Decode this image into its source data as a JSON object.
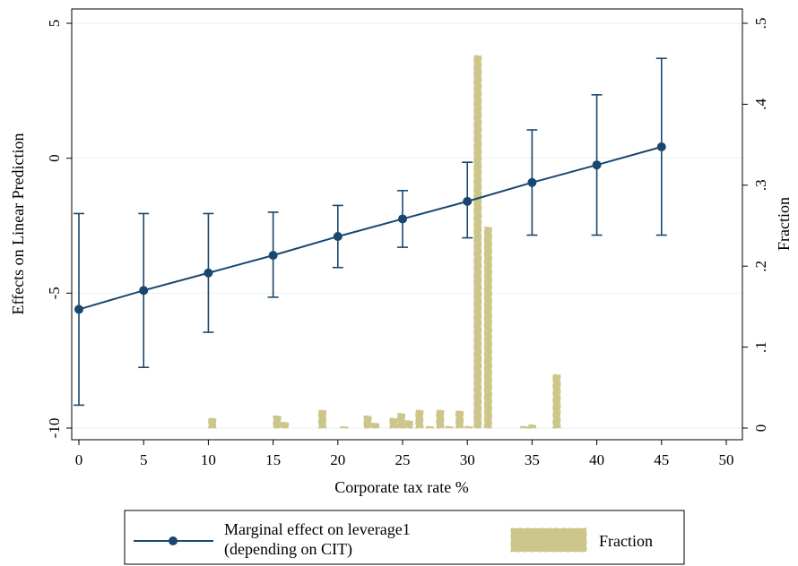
{
  "chart_data": {
    "type": "line",
    "xlabel": "Corporate tax rate %",
    "ylabel": "Effects on Linear Prediction",
    "y2label": "Fraction",
    "xlim": [
      0,
      50
    ],
    "ylim": [
      -10,
      5
    ],
    "y2lim": [
      0,
      0.5
    ],
    "x_ticks": [
      "0",
      "5",
      "10",
      "15",
      "20",
      "25",
      "30",
      "35",
      "40",
      "45",
      "50"
    ],
    "y_ticks": [
      "-10",
      "-5",
      "0",
      "5"
    ],
    "y2_ticks": [
      "0",
      ".1",
      ".2",
      ".3",
      ".4",
      ".5"
    ],
    "grid": true,
    "legend_position": "bottom",
    "series": [
      {
        "name": "Marginal effect on leverage1\n(depending on CIT)",
        "legend_lines": [
          "Marginal effect on leverage1",
          "(depending on CIT)"
        ],
        "color": "#1a476f",
        "x": [
          0,
          5,
          10,
          15,
          20,
          25,
          30,
          35,
          40,
          45
        ],
        "y": [
          -5.6,
          -4.9,
          -4.25,
          -3.6,
          -2.9,
          -2.25,
          -1.6,
          -0.9,
          -0.25,
          0.42
        ],
        "ci_low": [
          -9.15,
          -7.75,
          -6.45,
          -5.15,
          -4.05,
          -3.3,
          -2.95,
          -2.85,
          -2.85,
          -2.85
        ],
        "ci_high": [
          -2.05,
          -2.05,
          -2.05,
          -2.0,
          -1.75,
          -1.2,
          -0.15,
          1.05,
          2.35,
          3.7
        ]
      },
      {
        "name": "Fraction",
        "legend_lines": [
          "Fraction"
        ],
        "type": "bar",
        "axis": "right",
        "color": "#cdc68a",
        "bins": [
          {
            "x": 10.3,
            "value": 0.012
          },
          {
            "x": 15.3,
            "value": 0.015
          },
          {
            "x": 15.9,
            "value": 0.007
          },
          {
            "x": 18.8,
            "value": 0.022
          },
          {
            "x": 20.5,
            "value": 0.001
          },
          {
            "x": 22.3,
            "value": 0.015
          },
          {
            "x": 22.9,
            "value": 0.006
          },
          {
            "x": 24.3,
            "value": 0.012
          },
          {
            "x": 24.9,
            "value": 0.018
          },
          {
            "x": 25.5,
            "value": 0.009
          },
          {
            "x": 26.3,
            "value": 0.022
          },
          {
            "x": 27.1,
            "value": 0.002
          },
          {
            "x": 27.9,
            "value": 0.022
          },
          {
            "x": 28.6,
            "value": 0.002
          },
          {
            "x": 29.4,
            "value": 0.021
          },
          {
            "x": 30.1,
            "value": 0.002
          },
          {
            "x": 30.8,
            "value": 0.46
          },
          {
            "x": 31.6,
            "value": 0.248
          },
          {
            "x": 34.4,
            "value": 0.002
          },
          {
            "x": 35.0,
            "value": 0.004
          },
          {
            "x": 36.9,
            "value": 0.066
          }
        ]
      }
    ]
  }
}
